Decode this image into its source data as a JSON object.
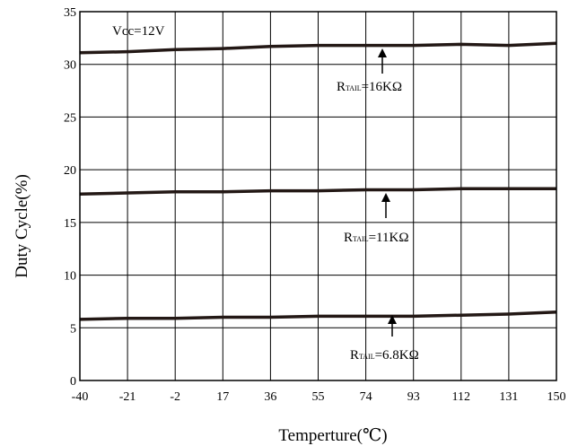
{
  "chart_data": {
    "type": "line",
    "title": "",
    "xlabel": "Temperture(℃)",
    "ylabel": "Duty Cycle(%)",
    "xlim": [
      -40,
      150
    ],
    "ylim": [
      0,
      35
    ],
    "x_ticks": [
      -40,
      -21,
      -2,
      17,
      36,
      55,
      74,
      93,
      112,
      131,
      150
    ],
    "y_ticks": [
      0,
      5,
      10,
      15,
      20,
      25,
      30,
      35
    ],
    "grid": true,
    "annotations": {
      "condition": "Vcc=12V",
      "series_labels": [
        {
          "prefix": "R",
          "sub": "TAIL",
          "suffix": "=16KΩ"
        },
        {
          "prefix": "R",
          "sub": "TAIL",
          "suffix": "=11KΩ"
        },
        {
          "prefix": "R",
          "sub": "TAIL",
          "suffix": "=6.8KΩ"
        }
      ]
    },
    "x": [
      -40,
      -21,
      -2,
      17,
      36,
      55,
      74,
      93,
      112,
      131,
      150
    ],
    "series": [
      {
        "values": [
          31.1,
          31.2,
          31.4,
          31.5,
          31.7,
          31.8,
          31.8,
          31.8,
          31.9,
          31.8,
          32.0
        ]
      },
      {
        "values": [
          17.7,
          17.8,
          17.9,
          17.9,
          18.0,
          18.0,
          18.1,
          18.1,
          18.2,
          18.2,
          18.2
        ]
      },
      {
        "values": [
          5.8,
          5.9,
          5.9,
          6.0,
          6.0,
          6.1,
          6.1,
          6.1,
          6.2,
          6.3,
          6.5
        ]
      }
    ],
    "line_color": "#231815"
  }
}
